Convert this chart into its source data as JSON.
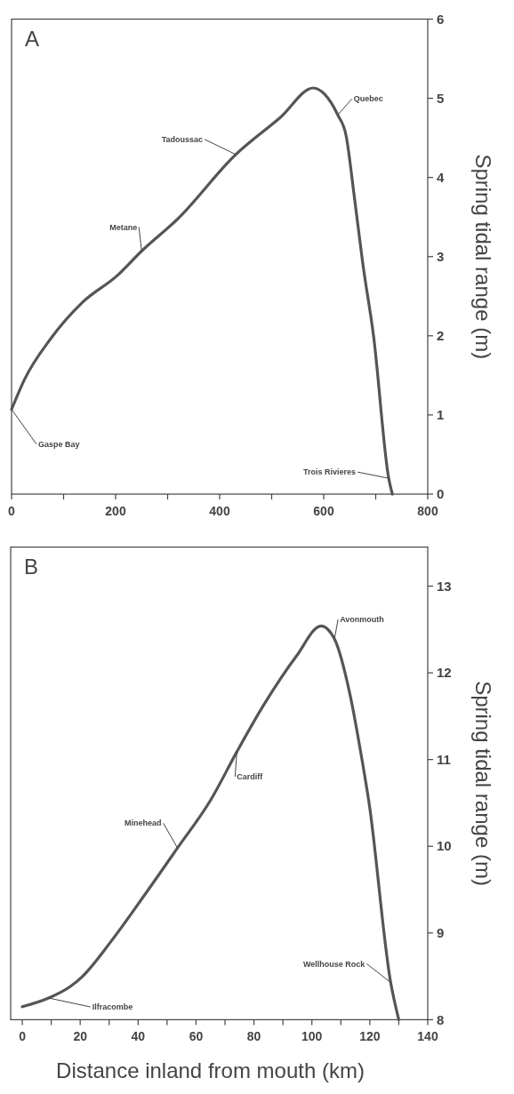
{
  "chart_data": [
    {
      "type": "line",
      "title": "A",
      "ylabel": "Spring tidal range (m)",
      "xlim": [
        0,
        800
      ],
      "ylim": [
        0,
        6
      ],
      "xticks": [
        0,
        {
          "value": 100,
          "label": null
        },
        200,
        {
          "value": 300,
          "label": null
        },
        400,
        {
          "value": 500,
          "label": null
        },
        600,
        {
          "value": 700,
          "label": null
        },
        800
      ],
      "yticks": [
        0,
        1,
        2,
        3,
        4,
        5,
        6
      ],
      "grid": false,
      "series": [
        {
          "color": "#555555",
          "x": [
            0,
            25,
            76,
            136,
            203,
            250,
            320,
            431,
            517,
            580,
            602,
            627,
            643,
            659,
            675,
            696,
            725,
            732
          ],
          "values": [
            1.07,
            1.45,
            1.97,
            2.42,
            2.76,
            3.07,
            3.48,
            4.29,
            4.76,
            5.13,
            5.05,
            4.79,
            4.53,
            3.75,
            2.92,
            1.99,
            0.2,
            0
          ]
        }
      ],
      "annotations": [
        {
          "text": "Gaspe Bay",
          "x": 0,
          "y": 1.07
        },
        {
          "text": "Metane",
          "x": 250,
          "y": 3.07
        },
        {
          "text": "Tadoussac",
          "x": 431,
          "y": 4.29
        },
        {
          "text": "Quebec",
          "x": 627,
          "y": 4.79
        },
        {
          "text": "Trois Rivieres",
          "x": 725,
          "y": 0.2
        }
      ]
    },
    {
      "type": "line",
      "title": "B",
      "xlabel": "Distance inland from mouth (km)",
      "ylabel": "Spring tidal range (m)",
      "xlim": [
        -4,
        140
      ],
      "ylim": [
        8,
        13.45
      ],
      "xticks": [
        0,
        {
          "value": 10,
          "label": null
        },
        20,
        {
          "value": 30,
          "label": null
        },
        40,
        {
          "value": 50,
          "label": null
        },
        60,
        {
          "value": 70,
          "label": null
        },
        80,
        {
          "value": 90,
          "label": null
        },
        100,
        {
          "value": 110,
          "label": null
        },
        120,
        {
          "value": 130,
          "label": null
        },
        140
      ],
      "yticks": [
        8,
        9,
        10,
        11,
        12,
        13
      ],
      "grid": false,
      "series": [
        {
          "color": "#555555",
          "x": [
            0,
            9.1,
            16.5,
            20.5,
            30.8,
            41,
            53.6,
            65,
            74.1,
            83.2,
            94.6,
            103.2,
            107.8,
            112.9,
            117.5,
            119.7,
            127.2,
            130
          ],
          "values": [
            8.15,
            8.25,
            8.38,
            8.49,
            8.91,
            9.38,
            9.98,
            10.53,
            11.09,
            11.62,
            12.19,
            12.54,
            12.39,
            11.79,
            10.96,
            10.51,
            8.43,
            8.0
          ]
        }
      ],
      "annotations": [
        {
          "text": "Ilfracombe",
          "x": 9.1,
          "y": 8.25
        },
        {
          "text": "Minehead",
          "x": 53.6,
          "y": 9.98
        },
        {
          "text": "Cardiff",
          "x": 74.1,
          "y": 11.09
        },
        {
          "text": "Avonmouth",
          "x": 107.8,
          "y": 12.39
        },
        {
          "text": "Wellhouse Rock",
          "x": 127.2,
          "y": 8.43
        }
      ]
    }
  ]
}
